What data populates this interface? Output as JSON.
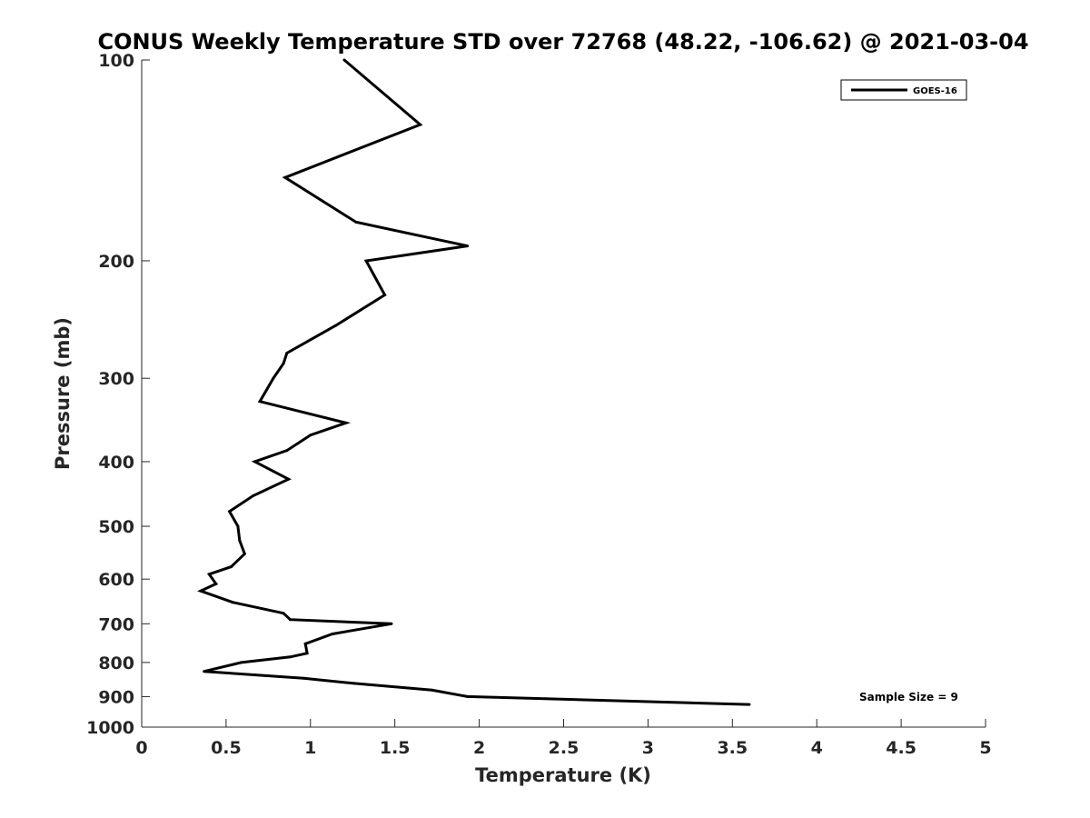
{
  "chart_data": {
    "type": "line",
    "title": "CONUS Weekly Temperature STD over 72768 (48.22, -106.62) @ 2021-03-04",
    "xlabel": "Temperature (K)",
    "ylabel": "Pressure (mb)",
    "xlim": [
      0,
      5
    ],
    "ylim": [
      1000,
      100
    ],
    "yscale": "log",
    "y_reversed": true,
    "xticks": [
      "0",
      "0.5",
      "1",
      "1.5",
      "2",
      "2.5",
      "3",
      "3.5",
      "4",
      "4.5",
      "5"
    ],
    "yticks": [
      "100",
      "200",
      "300",
      "400",
      "500",
      "600",
      "700",
      "800",
      "900",
      "1000"
    ],
    "grid": false,
    "legend_position": "top-right",
    "annotation": "Sample Size = 9",
    "series": [
      {
        "name": "GOES-16",
        "color": "#000000",
        "x": [
          1.2,
          1.65,
          0.85,
          1.27,
          1.93,
          1.33,
          1.44,
          1.15,
          0.86,
          0.84,
          0.78,
          0.7,
          1.21,
          1.0,
          0.86,
          0.67,
          0.87,
          0.66,
          0.52,
          0.57,
          0.58,
          0.61,
          0.53,
          0.4,
          0.44,
          0.35,
          0.54,
          0.84,
          0.88,
          1.48,
          1.13,
          0.97,
          0.98,
          0.88,
          0.59,
          0.37,
          0.96,
          1.26,
          1.72,
          1.93,
          3.6
        ],
        "y": [
          100,
          125,
          150,
          175,
          190,
          200,
          225,
          250,
          275,
          285,
          300,
          325,
          350,
          365,
          385,
          400,
          425,
          450,
          475,
          500,
          525,
          550,
          575,
          590,
          610,
          625,
          650,
          675,
          690,
          700,
          725,
          750,
          775,
          785,
          800,
          825,
          845,
          860,
          880,
          900,
          925
        ]
      }
    ]
  }
}
